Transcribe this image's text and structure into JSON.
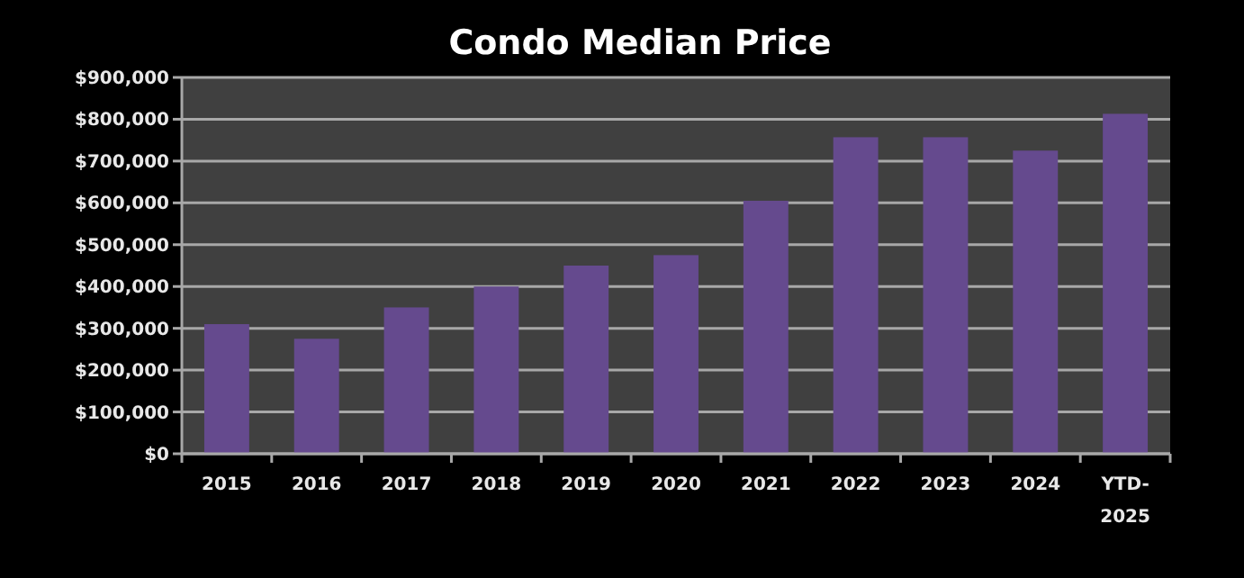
{
  "chart_data": {
    "type": "bar",
    "title": "Condo Median Price",
    "categories": [
      "2015",
      "2016",
      "2017",
      "2018",
      "2019",
      "2020",
      "2021",
      "2022",
      "2023",
      "2024",
      "YTD-2025"
    ],
    "values": [
      310000,
      275000,
      350000,
      400000,
      450000,
      475000,
      605000,
      757000,
      757000,
      725000,
      813000
    ],
    "color": "#654a8e",
    "ylim": [
      0,
      900000
    ],
    "yticks": [
      {
        "value": 0,
        "label": "$0"
      },
      {
        "value": 100000,
        "label": "$100,000"
      },
      {
        "value": 200000,
        "label": "$200,000"
      },
      {
        "value": 300000,
        "label": "$300,000"
      },
      {
        "value": 400000,
        "label": "$400,000"
      },
      {
        "value": 500000,
        "label": "$500,000"
      },
      {
        "value": 600000,
        "label": "$600,000"
      },
      {
        "value": 700000,
        "label": "$700,000"
      },
      {
        "value": 800000,
        "label": "$800,000"
      },
      {
        "value": 900000,
        "label": "$900,000"
      }
    ],
    "grid": "y"
  }
}
